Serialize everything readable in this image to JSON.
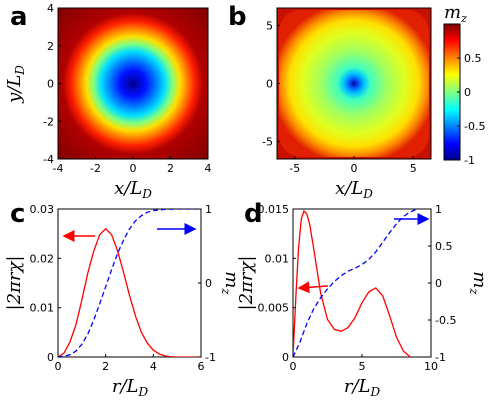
{
  "chart_data": [
    {
      "panel": "a",
      "type": "heatmap",
      "xlabel": "x/L_D",
      "ylabel": "y/L_D",
      "xlim": [
        -4,
        4
      ],
      "ylim": [
        -4,
        4
      ],
      "xticks": [
        "-4",
        "-2",
        "0",
        "2",
        "4"
      ],
      "yticks": [
        "-4",
        "-2",
        "0",
        "2",
        "4"
      ],
      "description_of_field": "radially symmetric m_z: -1 at center, +1 at r >= ~3.2",
      "profile_r": [
        0,
        0.5,
        1.0,
        1.5,
        2.0,
        2.5,
        3.0,
        3.5,
        4.0,
        5.7
      ],
      "profile_mz": [
        -1,
        -0.95,
        -0.8,
        -0.45,
        0.0,
        0.45,
        0.85,
        0.98,
        1,
        1
      ]
    },
    {
      "panel": "b",
      "type": "heatmap",
      "xlabel": "x/L_D",
      "ylabel": "",
      "xlim": [
        -6.5,
        6.5
      ],
      "ylim": [
        -6.5,
        6.5
      ],
      "xticks": [
        "-5",
        "0",
        "5"
      ],
      "yticks": [
        "-5",
        "0",
        "5"
      ],
      "colorbar_label": "m_z",
      "colorbar_ticks": [
        "-1",
        "-0.5",
        "0",
        "0.5"
      ],
      "colorbar_tick_values": [
        -1,
        -0.5,
        0,
        0.5
      ],
      "colorbar_range": [
        -1,
        1
      ]
    },
    {
      "panel": "c",
      "type": "line",
      "xlabel": "r/L_D",
      "ylabel_left": "|2πrχ|",
      "ylabel_right": "m_z",
      "xlim": [
        0,
        6
      ],
      "ylim_left": [
        0,
        0.03
      ],
      "ylim_right": [
        -1,
        1
      ],
      "xticks": [
        "0",
        "2",
        "4",
        "6"
      ],
      "yticks_left": [
        "0",
        "0.01",
        "0.02",
        "0.03"
      ],
      "yticks_right": [
        "-1",
        "0",
        "1"
      ],
      "series": [
        {
          "axis": "left",
          "style": "solid",
          "color": "#ff0000",
          "x": [
            0,
            0.25,
            0.5,
            0.75,
            1.0,
            1.25,
            1.5,
            1.75,
            2.0,
            2.25,
            2.5,
            2.75,
            3.0,
            3.25,
            3.5,
            3.75,
            4.0,
            4.25,
            4.5,
            4.75,
            5.0,
            5.5,
            6.0
          ],
          "y": [
            0,
            0.0008,
            0.003,
            0.0065,
            0.0115,
            0.017,
            0.0215,
            0.0248,
            0.026,
            0.0248,
            0.0215,
            0.0172,
            0.0125,
            0.0083,
            0.005,
            0.0028,
            0.0014,
            0.0006,
            0.0002,
            5e-05,
            0,
            0,
            0
          ]
        },
        {
          "axis": "right",
          "style": "dashed",
          "color": "#0000ff",
          "x": [
            0,
            0.25,
            0.5,
            0.75,
            1.0,
            1.25,
            1.5,
            1.75,
            2.0,
            2.25,
            2.5,
            2.75,
            3.0,
            3.25,
            3.5,
            3.75,
            4.0,
            4.5,
            5.0,
            6.0
          ],
          "y": [
            -1,
            -0.99,
            -0.97,
            -0.92,
            -0.83,
            -0.69,
            -0.5,
            -0.28,
            -0.05,
            0.18,
            0.4,
            0.58,
            0.73,
            0.84,
            0.91,
            0.955,
            0.98,
            0.995,
            1,
            1
          ]
        }
      ]
    },
    {
      "panel": "d",
      "type": "line",
      "xlabel": "r/L_D",
      "ylabel_left": "|2πrχ|",
      "ylabel_right": "m_z",
      "xlim": [
        0,
        10
      ],
      "ylim_left": [
        0,
        0.015
      ],
      "ylim_right": [
        -1,
        1
      ],
      "xticks": [
        "0",
        "5",
        "10"
      ],
      "yticks_left": [
        "0",
        "0.005",
        "0.01",
        "0.015"
      ],
      "yticks_right": [
        "-1",
        "-0.5",
        "0",
        "0.5",
        "1"
      ],
      "series": [
        {
          "axis": "left",
          "style": "solid",
          "color": "#ff0000",
          "x": [
            0,
            0.2,
            0.4,
            0.6,
            0.8,
            1.0,
            1.2,
            1.5,
            2.0,
            2.5,
            3.0,
            3.5,
            4.0,
            4.5,
            5.0,
            5.5,
            6.0,
            6.5,
            7.0,
            7.5,
            8.0,
            8.5
          ],
          "y": [
            0,
            0.006,
            0.011,
            0.014,
            0.0148,
            0.0145,
            0.0135,
            0.011,
            0.0065,
            0.0038,
            0.0028,
            0.0026,
            0.003,
            0.004,
            0.0055,
            0.0066,
            0.007,
            0.0062,
            0.0042,
            0.002,
            0.0006,
            0
          ]
        },
        {
          "axis": "right",
          "style": "dashed",
          "color": "#0000ff",
          "x": [
            0,
            0.5,
            1.0,
            1.5,
            2.0,
            2.5,
            3.0,
            3.5,
            4.0,
            4.5,
            5.0,
            5.5,
            6.0,
            6.5,
            7.0,
            7.5,
            8.0,
            8.5,
            9.0
          ],
          "y": [
            -1,
            -0.8,
            -0.55,
            -0.35,
            -0.2,
            -0.08,
            0.02,
            0.1,
            0.16,
            0.2,
            0.25,
            0.32,
            0.42,
            0.55,
            0.68,
            0.8,
            0.9,
            0.96,
            1
          ]
        }
      ]
    }
  ],
  "labels": {
    "a": "a",
    "b": "b",
    "c": "c",
    "d": "d"
  },
  "colors": {
    "red_curve": "#ff0000",
    "blue_curve": "#0000ff"
  }
}
